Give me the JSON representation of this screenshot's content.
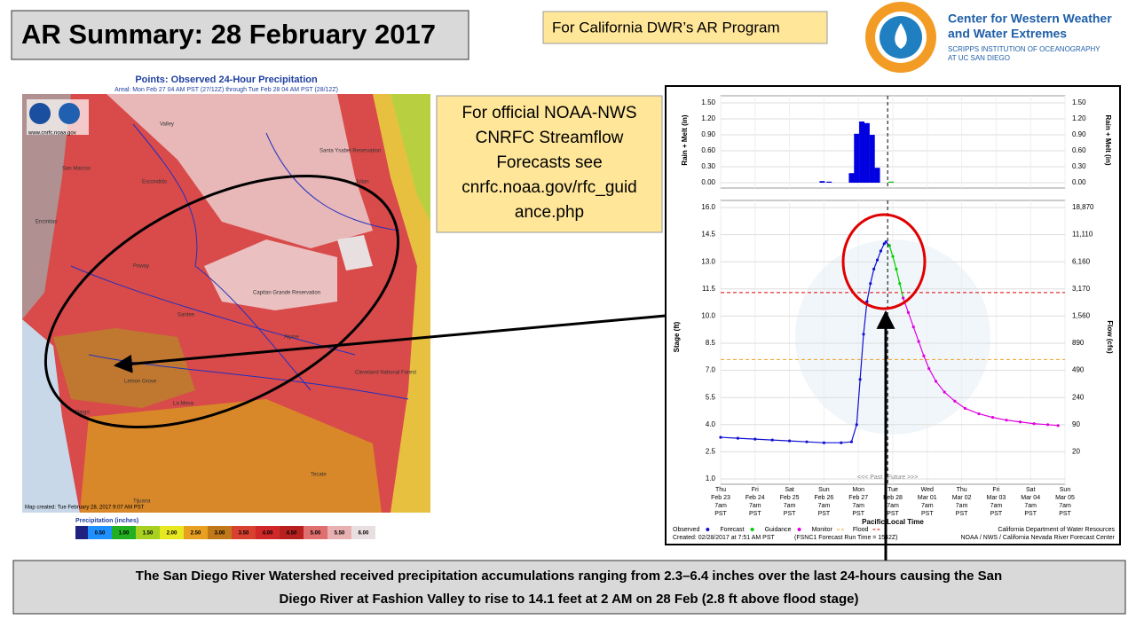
{
  "header": {
    "title": "AR Summary: 28 February 2017",
    "program_note": "For California DWR’s AR Program",
    "logo_title": [
      "Center for Western Weather",
      "and Water Extremes"
    ],
    "logo_subtitle": [
      "SCRIPPS INSTITUTION OF OCEANOGRAPHY",
      "AT UC SAN DIEGO"
    ]
  },
  "map": {
    "title": "Points: Observed 24-Hour Precipitation",
    "subtitle": "Areal: Mon Feb 27 04 AM PST (27/12Z) through Tue Feb 28 04 AM PST (28/12Z)",
    "website": "www.cnrfc.noaa.gov",
    "created": "Map created: Tue February 28, 2017 9:07 AM PST",
    "legend_title": "Precipitation (inches)",
    "legend_labels": [
      "0.50",
      "1.00",
      "1.50",
      "2.00",
      "2.50",
      "3.00",
      "3.50",
      "4.00",
      "4.50",
      "5.00",
      "5.50",
      "6.00"
    ],
    "legend_colors": [
      "#1e90ff",
      "#22b022",
      "#a8d020",
      "#e8e820",
      "#e8a020",
      "#c07818",
      "#d84030",
      "#d02828",
      "#b82020",
      "#e07070",
      "#e8b0b0",
      "#e8e0e0"
    ],
    "places": [
      "Valley",
      "San Marcos",
      "Escondido",
      "Encinitas",
      "Santa Ysabel Reservation",
      "Julian",
      "Poway",
      "Santee",
      "Alpine",
      "Lemon Grove",
      "La Mesa",
      "Diego",
      "Tecate",
      "Tijuana",
      "Capitan Grande Reservation",
      "Cleveland National Forest"
    ]
  },
  "note": {
    "lines": [
      "For official NOAA-NWS",
      "CNRFC Streamflow",
      "Forecasts see",
      "cnrfc.noaa.gov/rfc_guid",
      "ance.php"
    ]
  },
  "hydrograph": {
    "rain_axis_label": "Rain + Melt (in)",
    "stage_axis_label": "Stage (ft)",
    "flow_axis_label": "Flow (cfs)",
    "x_axis_label": "Pacific Local Time",
    "past_future": "<<< Past | Future >>>",
    "categories": [
      [
        "Thu",
        "Feb 23",
        "7am",
        "PST"
      ],
      [
        "Fri",
        "Feb 24",
        "7am",
        "PST"
      ],
      [
        "Sat",
        "Feb 25",
        "7am",
        "PST"
      ],
      [
        "Sun",
        "Feb 26",
        "7am",
        "PST"
      ],
      [
        "Mon",
        "Feb 27",
        "7am",
        "PST"
      ],
      [
        "Tue",
        "Feb 28",
        "7am",
        "PST"
      ],
      [
        "Wed",
        "Mar 01",
        "7am",
        "PST"
      ],
      [
        "Thu",
        "Mar 02",
        "7am",
        "PST"
      ],
      [
        "Fri",
        "Mar 03",
        "7am",
        "PST"
      ],
      [
        "Sat",
        "Mar 04",
        "7am",
        "PST"
      ],
      [
        "Sun",
        "Mar 05",
        "7am",
        "PST"
      ]
    ],
    "xlim": [
      0,
      10
    ],
    "now": 4.85,
    "rain": {
      "ylim": [
        0,
        1.5
      ],
      "yticks": [
        {
          "value": 0,
          "label": "0.00"
        },
        {
          "value": 0.3,
          "label": "0.30"
        },
        {
          "value": 0.6,
          "label": "0.60"
        },
        {
          "value": 0.9,
          "label": "0.90"
        },
        {
          "value": 1.2,
          "label": "1.20"
        },
        {
          "value": 1.5,
          "label": "1.50"
        }
      ],
      "x": [
        2.95,
        3.15,
        3.8,
        3.95,
        4.1,
        4.25,
        4.4,
        4.55,
        4.95
      ],
      "values": [
        0.03,
        0.02,
        0.18,
        0.92,
        1.15,
        1.12,
        0.9,
        0.28,
        0.02
      ],
      "colors": [
        "#0000e0",
        "#0000e0",
        "#0000e0",
        "#0000e0",
        "#0000e0",
        "#0000e0",
        "#0000e0",
        "#0000e0",
        "#00c000"
      ]
    },
    "ylim": [
      1,
      16
    ],
    "yticks": [
      {
        "value": 1,
        "label": "1.0"
      },
      {
        "value": 2.5,
        "label": "2.5"
      },
      {
        "value": 4,
        "label": "4.0"
      },
      {
        "value": 5.5,
        "label": "5.5"
      },
      {
        "value": 7,
        "label": "7.0"
      },
      {
        "value": 8.5,
        "label": "8.5"
      },
      {
        "value": 10,
        "label": "10.0"
      },
      {
        "value": 11.5,
        "label": "11.5"
      },
      {
        "value": 13,
        "label": "13.0"
      },
      {
        "value": 14.5,
        "label": "14.5"
      },
      {
        "value": 16,
        "label": "16.0"
      }
    ],
    "flow_labels": [
      "",
      "20",
      "90",
      "240",
      "490",
      "890",
      "1,560",
      "3,170",
      "6,160",
      "11,110",
      "18,870"
    ],
    "flood_stage": 11.3,
    "monitor_stage": 7.6,
    "series": [
      {
        "name": "Observed",
        "color": "#1010d0",
        "x": [
          0,
          0.5,
          1,
          1.5,
          2,
          2.5,
          3,
          3.5,
          3.8,
          3.95,
          4.05,
          4.15,
          4.25,
          4.35,
          4.45,
          4.55,
          4.65,
          4.75,
          4.8,
          4.9
        ],
        "values": [
          3.3,
          3.25,
          3.2,
          3.15,
          3.1,
          3.05,
          3.0,
          3.0,
          3.05,
          4.0,
          6.5,
          9.0,
          10.8,
          11.8,
          12.6,
          13.1,
          13.6,
          14.0,
          14.1,
          13.9
        ]
      },
      {
        "name": "Forecast",
        "color": "#00d000",
        "x": [
          4.9,
          5.0,
          5.1,
          5.2,
          5.3
        ],
        "values": [
          13.9,
          13.3,
          12.6,
          11.8,
          11.0
        ]
      },
      {
        "name": "Guidance",
        "color": "#e000e0",
        "x": [
          5.3,
          5.45,
          5.6,
          5.75,
          5.9,
          6.05,
          6.25,
          6.5,
          6.8,
          7.1,
          7.5,
          7.9,
          8.3,
          8.7,
          9.1,
          9.5,
          9.8
        ],
        "values": [
          11.0,
          10.2,
          9.4,
          8.6,
          7.8,
          7.1,
          6.4,
          5.8,
          5.3,
          4.9,
          4.6,
          4.4,
          4.25,
          4.15,
          4.05,
          4.0,
          3.95
        ]
      }
    ],
    "monitor_name": "Monitor",
    "flood_name": "Flood",
    "created": "Created: 02/28/2017 at 7:51 AM PST",
    "run_time": "(FSNC1 Forecast Run Time = 1542Z)",
    "credit": [
      "California Department of Water Resources",
      "NOAA / NWS / California Nevada River Forecast Center"
    ]
  },
  "summary": {
    "lines": [
      "The San Diego River Watershed received precipitation accumulations ranging from 2.3–6.4 inches over the last 24-hours causing the San",
      "Diego River at Fashion Valley to rise to 14.1 feet at 2 AM on 28 Feb (2.8 ft above flood stage)"
    ]
  }
}
